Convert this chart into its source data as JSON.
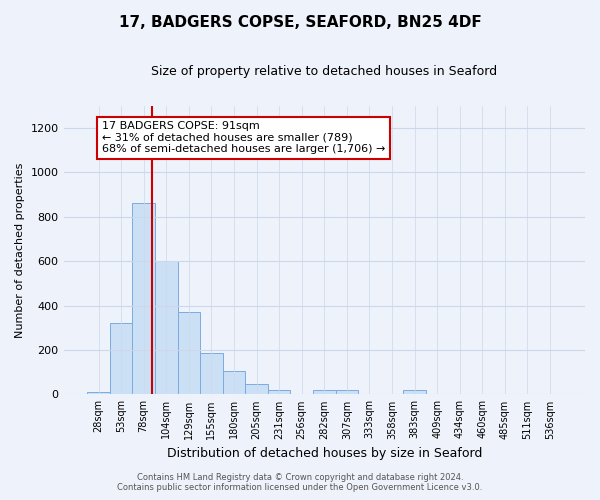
{
  "title": "17, BADGERS COPSE, SEAFORD, BN25 4DF",
  "subtitle": "Size of property relative to detached houses in Seaford",
  "xlabel": "Distribution of detached houses by size in Seaford",
  "ylabel": "Number of detached properties",
  "bar_labels": [
    "28sqm",
    "53sqm",
    "78sqm",
    "104sqm",
    "129sqm",
    "155sqm",
    "180sqm",
    "205sqm",
    "231sqm",
    "256sqm",
    "282sqm",
    "307sqm",
    "333sqm",
    "358sqm",
    "383sqm",
    "409sqm",
    "434sqm",
    "460sqm",
    "485sqm",
    "511sqm",
    "536sqm"
  ],
  "bar_values": [
    12,
    320,
    860,
    600,
    370,
    185,
    105,
    48,
    22,
    0,
    20,
    18,
    0,
    0,
    18,
    0,
    0,
    0,
    0,
    0,
    0
  ],
  "bar_color": "#cce0f5",
  "bar_edge_color": "#7aabe0",
  "grid_color": "#ccd8ea",
  "background_color": "#eef2fa",
  "vline_color": "#cc0000",
  "annotation_text_line1": "17 BADGERS COPSE: 91sqm",
  "annotation_text_line2": "← 31% of detached houses are smaller (789)",
  "annotation_text_line3": "68% of semi-detached houses are larger (1,706) →",
  "annotation_box_color": "#ffffff",
  "annotation_box_edge": "#cc0000",
  "ylim": [
    0,
    1300
  ],
  "yticks": [
    0,
    200,
    400,
    600,
    800,
    1000,
    1200
  ],
  "footer_line1": "Contains HM Land Registry data © Crown copyright and database right 2024.",
  "footer_line2": "Contains public sector information licensed under the Open Government Licence v3.0."
}
